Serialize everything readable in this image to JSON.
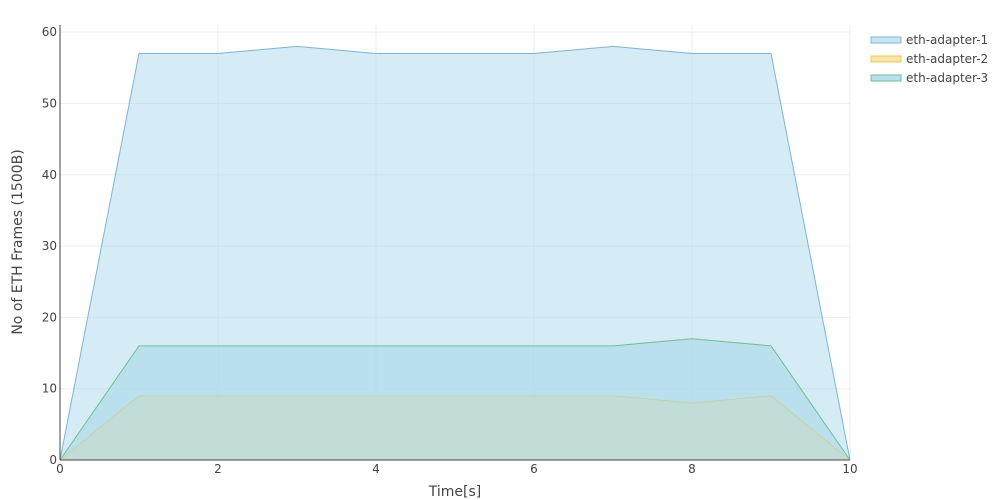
{
  "chart_data": {
    "type": "area",
    "xlabel": "Time[s]",
    "ylabel": "No of ETH Frames (1500B)",
    "xlim": [
      0,
      10
    ],
    "ylim": [
      0,
      61
    ],
    "xticks": [
      0,
      2,
      4,
      6,
      8,
      10
    ],
    "yticks": [
      0,
      10,
      20,
      30,
      40,
      50,
      60
    ],
    "grid": true,
    "legend_position": "top-right",
    "x": [
      0,
      1,
      2,
      3,
      4,
      5,
      6,
      7,
      8,
      9,
      10
    ],
    "series": [
      {
        "name": "eth-adapter-1",
        "values": [
          0,
          57,
          57,
          58,
          57,
          57,
          57,
          58,
          57,
          57,
          0
        ],
        "line_color": "#7fb3d8",
        "fill_color": "#b9ddf0"
      },
      {
        "name": "eth-adapter-2",
        "values": [
          0,
          9,
          9,
          9,
          9,
          9,
          9,
          9,
          8,
          9,
          0
        ],
        "line_color": "#f2c94c",
        "fill_color": "#f5dd9a"
      },
      {
        "name": "eth-adapter-3",
        "values": [
          0,
          16,
          16,
          16,
          16,
          16,
          16,
          16,
          17,
          16,
          0
        ],
        "line_color": "#6fbf8e",
        "fill_color": "#a8d8e8"
      }
    ]
  }
}
